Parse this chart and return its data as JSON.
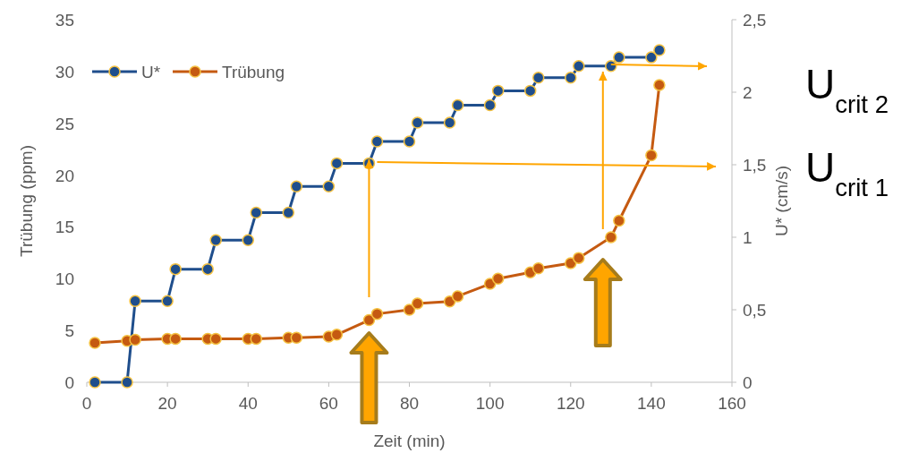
{
  "chart_data": {
    "type": "line",
    "xlabel": "Zeit (min)",
    "ylabel": "Trübung (ppm)",
    "y2label": "U* (cm/s)",
    "xlim": [
      0,
      160
    ],
    "xticks": [
      0,
      20,
      40,
      60,
      80,
      100,
      120,
      140,
      160
    ],
    "ylim": [
      0,
      35
    ],
    "yticks": [
      0,
      5,
      10,
      15,
      20,
      25,
      30,
      35
    ],
    "y2lim": [
      0,
      2.5
    ],
    "y2ticks": [
      0,
      {
        "value": 0.5,
        "label": "0,5"
      },
      1,
      {
        "value": 1.5,
        "label": "1,5"
      },
      2,
      {
        "value": 2.5,
        "label": "2,5"
      }
    ],
    "legend": "top left",
    "marker": "circle",
    "line_style": "solid",
    "grid": false,
    "annotations": [
      "U$_{crit 2}$",
      "U$_{crit 1}$"
    ],
    "series": [
      {
        "name": "U*",
        "color": "#1f4e8c",
        "axis": "y2",
        "x": [
          2,
          10,
          12,
          20,
          22,
          30,
          32,
          40,
          42,
          50,
          52,
          60,
          62,
          70,
          72,
          80,
          82,
          90,
          92,
          100,
          102,
          110,
          112,
          120,
          122,
          130,
          132,
          140,
          142
        ],
        "values": [
          0,
          0,
          0.56,
          0.56,
          0.78,
          0.78,
          0.98,
          0.98,
          1.17,
          1.17,
          1.35,
          1.35,
          1.51,
          1.51,
          1.66,
          1.66,
          1.79,
          1.79,
          1.91,
          1.91,
          2.01,
          2.01,
          2.1,
          2.1,
          2.18,
          2.18,
          2.24,
          2.24,
          2.29
        ]
      },
      {
        "name": "Trübung",
        "color": "#c55a11",
        "x": [
          2,
          10,
          12,
          20,
          22,
          30,
          32,
          40,
          42,
          50,
          52,
          60,
          62,
          70,
          72,
          80,
          82,
          90,
          92,
          100,
          102,
          110,
          112,
          120,
          122,
          130,
          132,
          140,
          142
        ],
        "values": [
          3.8,
          4.0,
          4.1,
          4.2,
          4.2,
          4.2,
          4.2,
          4.2,
          4.2,
          4.3,
          4.3,
          4.4,
          4.6,
          6.0,
          6.6,
          7.0,
          7.6,
          7.8,
          8.3,
          9.5,
          10.0,
          10.6,
          11.0,
          11.5,
          12.0,
          14.0,
          15.6,
          21.9,
          28.7
        ]
      }
    ]
  }
}
